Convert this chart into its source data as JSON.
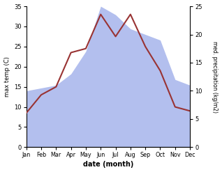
{
  "months": [
    "Jan",
    "Feb",
    "Mar",
    "Apr",
    "May",
    "Jun",
    "Jul",
    "Aug",
    "Sep",
    "Oct",
    "Nov",
    "Dec"
  ],
  "temperature": [
    8.5,
    13.0,
    15.0,
    23.5,
    24.5,
    33.0,
    27.5,
    33.0,
    25.0,
    19.0,
    10.0,
    9.0
  ],
  "precipitation": [
    10.0,
    10.5,
    11.0,
    13.0,
    17.0,
    25.0,
    23.5,
    21.0,
    20.0,
    19.0,
    12.0,
    11.0
  ],
  "temp_color": "#993333",
  "precip_color": "#b3bfee",
  "temp_ylim": [
    0,
    35
  ],
  "precip_ylim": [
    0,
    25
  ],
  "temp_ylabel": "max temp (C)",
  "precip_ylabel": "med. precipitation (kg/m2)",
  "xlabel": "date (month)",
  "temp_yticks": [
    0,
    5,
    10,
    15,
    20,
    25,
    30,
    35
  ],
  "precip_yticks": [
    0,
    5,
    10,
    15,
    20,
    25
  ],
  "bg_color": "#ffffff",
  "line_width": 1.5
}
